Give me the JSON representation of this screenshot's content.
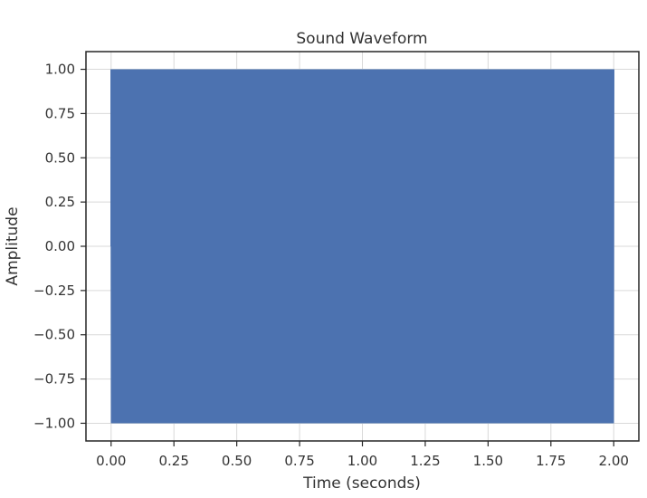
{
  "chart_data": {
    "type": "line",
    "title": "Sound Waveform",
    "xlabel": "Time (seconds)",
    "ylabel": "Amplitude",
    "xlim": [
      -0.1,
      2.1
    ],
    "ylim": [
      -1.1,
      1.1
    ],
    "xticks": [
      0.0,
      0.25,
      0.5,
      0.75,
      1.0,
      1.25,
      1.5,
      1.75,
      2.0
    ],
    "xtick_labels": [
      "0.00",
      "0.25",
      "0.50",
      "0.75",
      "1.00",
      "1.25",
      "1.50",
      "1.75",
      "2.00"
    ],
    "yticks": [
      1.0,
      0.75,
      0.5,
      0.25,
      0.0,
      -0.25,
      -0.5,
      -0.75,
      -1.0
    ],
    "ytick_labels": [
      "1.00",
      "0.75",
      "0.50",
      "0.25",
      "0.00",
      "−0.25",
      "−0.50",
      "−0.75",
      "−1.00"
    ],
    "grid": true,
    "series": [
      {
        "color": "#4c72b0",
        "x_range": [
          0.0,
          2.0
        ],
        "y_range": [
          -1.0,
          1.0
        ],
        "description_of_shape": "dense oscillation filling the full amplitude band"
      }
    ]
  }
}
